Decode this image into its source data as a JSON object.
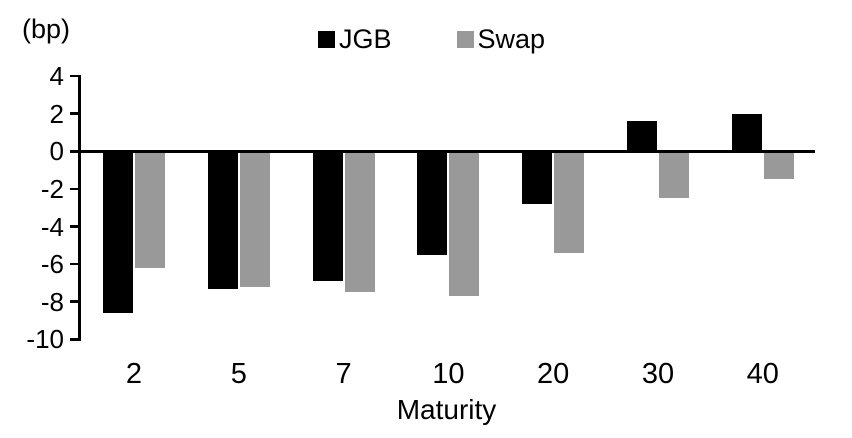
{
  "chart_data": {
    "type": "bar",
    "unit_label": "(bp)",
    "xlabel": "Maturity",
    "categories": [
      "2",
      "5",
      "7",
      "10",
      "20",
      "30",
      "40"
    ],
    "series": [
      {
        "name": "JGB",
        "color": "#000000",
        "values": [
          -8.6,
          -7.3,
          -6.9,
          -5.5,
          -2.8,
          1.6,
          2.0
        ]
      },
      {
        "name": "Swap",
        "color": "#999999",
        "values": [
          -6.2,
          -7.2,
          -7.5,
          -7.7,
          -5.4,
          -2.5,
          -1.5
        ]
      }
    ],
    "ylim": [
      -10,
      4
    ],
    "yticks": [
      4,
      2,
      0,
      -2,
      -4,
      -6,
      -8,
      -10
    ],
    "grid": false,
    "legend_position": "top-center",
    "axis_color": "#000000"
  }
}
